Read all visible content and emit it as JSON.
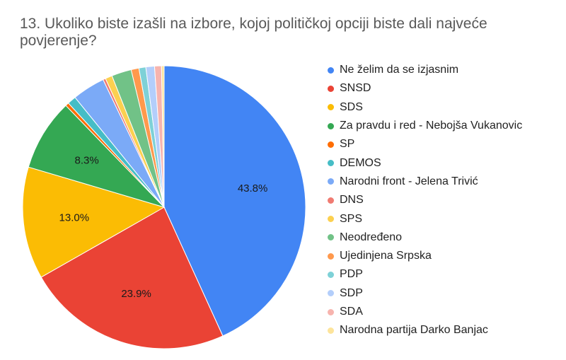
{
  "chart_data": {
    "type": "pie",
    "title": "13. Ukoliko biste izašli na izbore, kojoj političkoj opciji biste dali najveće povjerenje?",
    "legend_position": "right",
    "slices": [
      {
        "label": "Ne želim da se izjasnim",
        "value": 43.8,
        "color": "#4285F4",
        "data_label": "43.8%"
      },
      {
        "label": "SNSD",
        "value": 23.9,
        "color": "#EA4335",
        "data_label": "23.9%"
      },
      {
        "label": "SDS",
        "value": 13.0,
        "color": "#FBBC04",
        "data_label": "13.0%"
      },
      {
        "label": "Za pravdu i red - Nebojša Vukanovic",
        "value": 8.3,
        "color": "#34A853",
        "data_label": "8.3%"
      },
      {
        "label": "SP",
        "value": 0.4,
        "color": "#FF6D01",
        "data_label": ""
      },
      {
        "label": "DEMOS",
        "value": 1.0,
        "color": "#46BDC6",
        "data_label": ""
      },
      {
        "label": "Narodni front - Jelena Trivić",
        "value": 3.8,
        "color": "#7BAAF7",
        "data_label": ""
      },
      {
        "label": "DNS",
        "value": 0.3,
        "color": "#F07B72",
        "data_label": ""
      },
      {
        "label": "SPS",
        "value": 0.8,
        "color": "#FCD04F",
        "data_label": ""
      },
      {
        "label": "Neodređeno",
        "value": 2.3,
        "color": "#71C287",
        "data_label": ""
      },
      {
        "label": "Ujedinjena Srpska",
        "value": 0.9,
        "color": "#FF994D",
        "data_label": ""
      },
      {
        "label": "PDP",
        "value": 0.8,
        "color": "#7ED1D7",
        "data_label": ""
      },
      {
        "label": "SDP",
        "value": 1.0,
        "color": "#B3CEFB",
        "data_label": ""
      },
      {
        "label": "SDA",
        "value": 0.8,
        "color": "#F7B4AE",
        "data_label": ""
      },
      {
        "label": "Narodna partija Darko Banjac",
        "value": 0.3,
        "color": "#FDE49B",
        "data_label": ""
      }
    ]
  }
}
